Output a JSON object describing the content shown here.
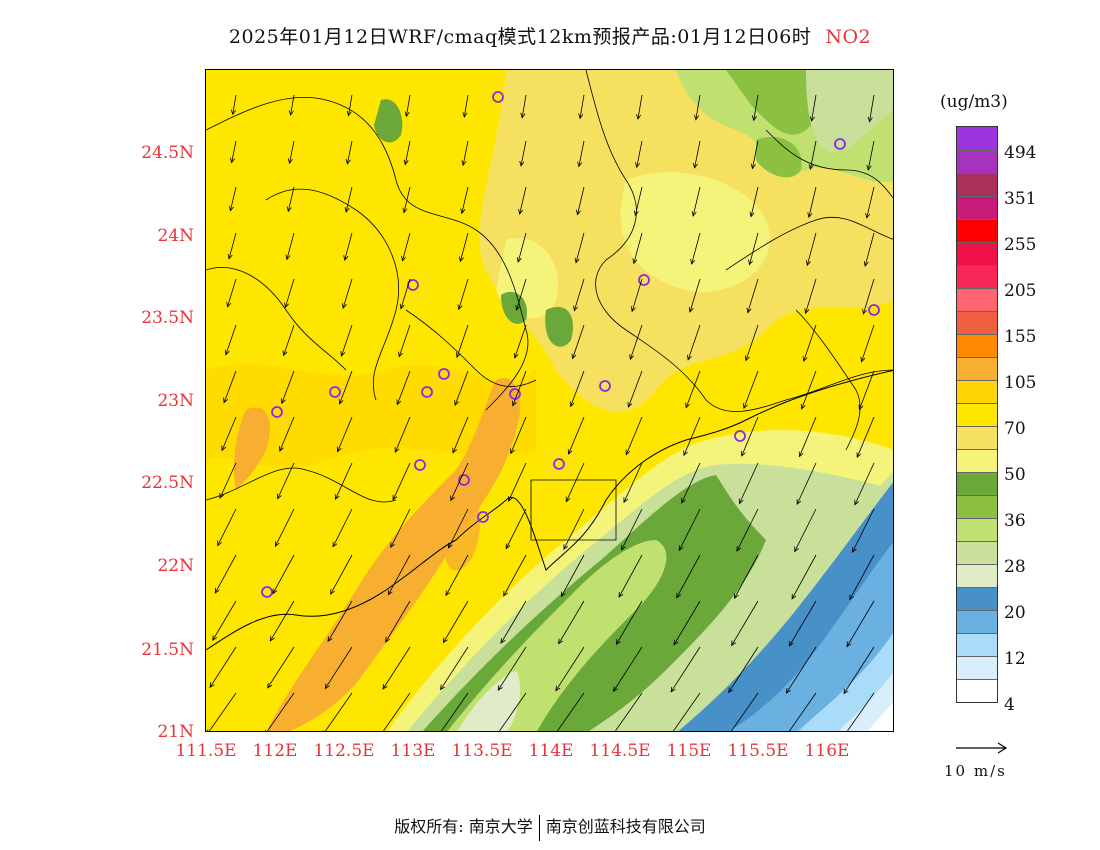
{
  "title": {
    "text": "2025年01月12日WRF/cmaq模式12km预报产品:01月12日06时",
    "pollutant": "NO2"
  },
  "axes": {
    "y_labels": [
      "24.5N",
      "24N",
      "23.5N",
      "23N",
      "22.5N",
      "22N",
      "21.5N",
      "21N"
    ],
    "x_labels": [
      "111.5E",
      "112E",
      "112.5E",
      "113E",
      "113.5E",
      "114E",
      "114.5E",
      "115E",
      "115.5E",
      "116E"
    ],
    "label_color": "#e8343a"
  },
  "colorbar": {
    "unit": "(ug/m3)",
    "colors_top_to_bottom": [
      "#9b35e0",
      "#a832c0",
      "#a8305a",
      "#c81a78",
      "#ff0000",
      "#f0104a",
      "#f52858",
      "#ff6670",
      "#f06040",
      "#ff8800",
      "#f8ae30",
      "#ffd400",
      "#ffe600",
      "#f5e060",
      "#f4f47a",
      "#6aa83a",
      "#8cc040",
      "#c0e070",
      "#c8e09a",
      "#e0ecc8",
      "#4890c8",
      "#6ab0e0",
      "#a8dcf8",
      "#d8eefa",
      "#ffffff"
    ],
    "tick_labels": [
      "494",
      "351",
      "255",
      "205",
      "155",
      "105",
      "70",
      "50",
      "36",
      "28",
      "20",
      "12",
      "4"
    ]
  },
  "wind_reference": {
    "label": "10 m/s"
  },
  "footer": {
    "left": "版权所有: 南京大学",
    "right": "南京创蓝科技有限公司"
  }
}
